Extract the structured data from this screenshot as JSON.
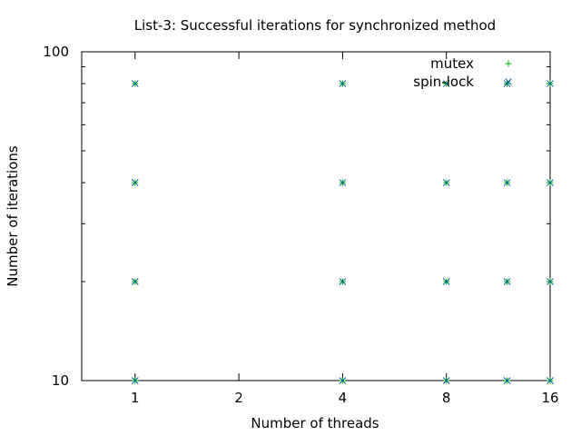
{
  "chart_data": {
    "type": "scatter",
    "title": "List-3: Successful iterations for synchronized method",
    "xlabel": "Number of threads",
    "ylabel": "Number of iterations",
    "xscale": "log2",
    "yscale": "log10",
    "xlim": [
      0.7,
      16
    ],
    "ylim": [
      10,
      100
    ],
    "xticks": [
      {
        "v": 1,
        "label": "1"
      },
      {
        "v": 2,
        "label": "2"
      },
      {
        "v": 4,
        "label": "4"
      },
      {
        "v": 8,
        "label": "8"
      },
      {
        "v": 16,
        "label": "16"
      }
    ],
    "yticks": [
      {
        "v": 10,
        "label": "10"
      },
      {
        "v": 100,
        "label": "100"
      }
    ],
    "grid": false,
    "legend_position": "top-right",
    "series": [
      {
        "name": "mutex",
        "marker": "plus",
        "color": "#00c000",
        "x": [
          1,
          1,
          1,
          1,
          4,
          4,
          4,
          4,
          8,
          8,
          8,
          8,
          12,
          12,
          12,
          12,
          16,
          16,
          16,
          16
        ],
        "y": [
          80,
          40,
          20,
          10,
          80,
          40,
          20,
          10,
          80,
          40,
          20,
          10,
          80,
          40,
          20,
          10,
          80,
          40,
          20,
          10
        ]
      },
      {
        "name": "spin-lock",
        "marker": "cross",
        "color": "#00609a",
        "x": [
          1,
          1,
          1,
          1,
          4,
          4,
          4,
          4,
          8,
          8,
          8,
          8,
          12,
          12,
          12,
          12,
          16,
          16,
          16,
          16
        ],
        "y": [
          80,
          40,
          20,
          10,
          80,
          40,
          20,
          10,
          80,
          40,
          20,
          10,
          80,
          40,
          20,
          10,
          80,
          40,
          20,
          10
        ]
      }
    ]
  }
}
